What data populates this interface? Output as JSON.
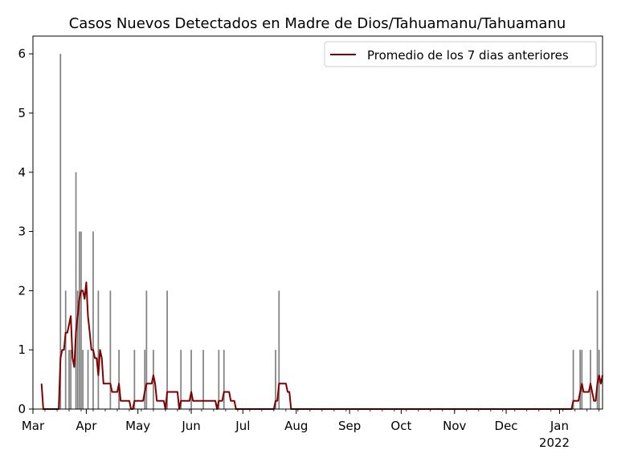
{
  "chart_data": {
    "type": "bar",
    "title": "Casos Nuevos Detectados en Madre de Dios/Tahuamanu/Tahuamanu",
    "xlabel": "",
    "ylabel": "",
    "ylim": [
      0,
      6.3
    ],
    "yticks": [
      "0",
      "1",
      "2",
      "3",
      "4",
      "5",
      "6"
    ],
    "xticks": [
      {
        "date": "2020-03-01",
        "label": "Mar"
      },
      {
        "date": "2020-04-01",
        "label": "Apr"
      },
      {
        "date": "2020-05-01",
        "label": "May"
      },
      {
        "date": "2020-06-01",
        "label": "Jun"
      },
      {
        "date": "2020-07-01",
        "label": "Jul"
      },
      {
        "date": "2020-08-01",
        "label": "Aug"
      },
      {
        "date": "2020-09-01",
        "label": "Sep"
      },
      {
        "date": "2020-10-01",
        "label": "Oct"
      },
      {
        "date": "2020-11-01",
        "label": "Nov"
      },
      {
        "date": "2020-12-01",
        "label": "Dec"
      },
      {
        "date": "2021-01-01",
        "label": "Jan"
      }
    ],
    "year_label": "2022",
    "xlim": [
      "2020-03-01",
      "2021-01-26"
    ],
    "bar_color": "#808080",
    "line_color": "#800000",
    "legend": {
      "label": "Promedio de los 7 dias anteriores",
      "position": "top-right"
    },
    "series": [
      {
        "name": "Casos",
        "points": [
          [
            "2020-03-17",
            6
          ],
          [
            "2020-03-20",
            2
          ],
          [
            "2020-03-22",
            1
          ],
          [
            "2020-03-23",
            1
          ],
          [
            "2020-03-26",
            4
          ],
          [
            "2020-03-27",
            2
          ],
          [
            "2020-03-28",
            3
          ],
          [
            "2020-03-29",
            3
          ],
          [
            "2020-03-30",
            1
          ],
          [
            "2020-04-02",
            1
          ],
          [
            "2020-04-05",
            3
          ],
          [
            "2020-04-08",
            2
          ],
          [
            "2020-04-15",
            2
          ],
          [
            "2020-04-20",
            1
          ],
          [
            "2020-04-29",
            1
          ],
          [
            "2020-05-05",
            1
          ],
          [
            "2020-05-06",
            2
          ],
          [
            "2020-05-10",
            1
          ],
          [
            "2020-05-18",
            2
          ],
          [
            "2020-05-26",
            1
          ],
          [
            "2020-06-01",
            1
          ],
          [
            "2020-06-08",
            1
          ],
          [
            "2020-06-17",
            1
          ],
          [
            "2020-06-20",
            1
          ],
          [
            "2020-07-20",
            1
          ],
          [
            "2020-07-22",
            2
          ],
          [
            "2021-01-09",
            1
          ],
          [
            "2021-01-13",
            1
          ],
          [
            "2021-01-14",
            1
          ],
          [
            "2021-01-19",
            1
          ],
          [
            "2021-01-23",
            2
          ],
          [
            "2021-01-24",
            1
          ]
        ]
      },
      {
        "name": "Promedio de los 7 dias anteriores",
        "points": [
          [
            "2020-03-06",
            0.43
          ],
          [
            "2020-03-07",
            0
          ],
          [
            "2020-03-16",
            0
          ],
          [
            "2020-03-17",
            0.86
          ],
          [
            "2020-03-18",
            1.0
          ],
          [
            "2020-03-19",
            1.0
          ],
          [
            "2020-03-20",
            1.29
          ],
          [
            "2020-03-21",
            1.29
          ],
          [
            "2020-03-22",
            1.43
          ],
          [
            "2020-03-23",
            1.57
          ],
          [
            "2020-03-24",
            0.86
          ],
          [
            "2020-03-25",
            0.71
          ],
          [
            "2020-03-26",
            1.29
          ],
          [
            "2020-03-27",
            1.57
          ],
          [
            "2020-03-28",
            1.86
          ],
          [
            "2020-03-29",
            2.0
          ],
          [
            "2020-03-30",
            2.0
          ],
          [
            "2020-03-31",
            1.86
          ],
          [
            "2020-04-01",
            2.14
          ],
          [
            "2020-04-02",
            1.57
          ],
          [
            "2020-04-03",
            1.29
          ],
          [
            "2020-04-04",
            1.0
          ],
          [
            "2020-04-05",
            1.0
          ],
          [
            "2020-04-06",
            0.86
          ],
          [
            "2020-04-07",
            0.86
          ],
          [
            "2020-04-08",
            0.57
          ],
          [
            "2020-04-09",
            1.0
          ],
          [
            "2020-04-10",
            0.86
          ],
          [
            "2020-04-11",
            0.43
          ],
          [
            "2020-04-15",
            0.43
          ],
          [
            "2020-04-16",
            0.29
          ],
          [
            "2020-04-19",
            0.29
          ],
          [
            "2020-04-20",
            0.43
          ],
          [
            "2020-04-21",
            0.14
          ],
          [
            "2020-04-26",
            0.14
          ],
          [
            "2020-04-27",
            0
          ],
          [
            "2020-04-28",
            0
          ],
          [
            "2020-04-29",
            0.14
          ],
          [
            "2020-05-04",
            0.14
          ],
          [
            "2020-05-05",
            0.29
          ],
          [
            "2020-05-06",
            0.43
          ],
          [
            "2020-05-09",
            0.43
          ],
          [
            "2020-05-10",
            0.57
          ],
          [
            "2020-05-11",
            0.43
          ],
          [
            "2020-05-12",
            0.14
          ],
          [
            "2020-05-16",
            0.14
          ],
          [
            "2020-05-17",
            0
          ],
          [
            "2020-05-18",
            0.29
          ],
          [
            "2020-05-24",
            0.29
          ],
          [
            "2020-05-25",
            0
          ],
          [
            "2020-05-26",
            0.14
          ],
          [
            "2020-05-31",
            0.14
          ],
          [
            "2020-06-01",
            0.29
          ],
          [
            "2020-06-02",
            0.14
          ],
          [
            "2020-06-15",
            0.14
          ],
          [
            "2020-06-16",
            0
          ],
          [
            "2020-06-17",
            0.14
          ],
          [
            "2020-06-19",
            0.14
          ],
          [
            "2020-06-20",
            0.29
          ],
          [
            "2020-06-23",
            0.29
          ],
          [
            "2020-06-24",
            0.14
          ],
          [
            "2020-06-26",
            0.14
          ],
          [
            "2020-06-27",
            0
          ],
          [
            "2020-07-19",
            0
          ],
          [
            "2020-07-20",
            0.14
          ],
          [
            "2020-07-21",
            0.14
          ],
          [
            "2020-07-22",
            0.43
          ],
          [
            "2020-07-26",
            0.43
          ],
          [
            "2020-07-27",
            0.29
          ],
          [
            "2020-07-28",
            0.29
          ],
          [
            "2020-07-29",
            0
          ],
          [
            "2021-01-08",
            0
          ],
          [
            "2021-01-09",
            0.14
          ],
          [
            "2021-01-12",
            0.14
          ],
          [
            "2021-01-13",
            0.29
          ],
          [
            "2021-01-14",
            0.43
          ],
          [
            "2021-01-15",
            0.29
          ],
          [
            "2021-01-18",
            0.29
          ],
          [
            "2021-01-19",
            0.43
          ],
          [
            "2021-01-20",
            0.29
          ],
          [
            "2021-01-21",
            0.14
          ],
          [
            "2021-01-22",
            0.14
          ],
          [
            "2021-01-23",
            0.43
          ],
          [
            "2021-01-24",
            0.57
          ],
          [
            "2021-01-25",
            0.43
          ],
          [
            "2021-01-26",
            0.57
          ]
        ]
      }
    ]
  }
}
